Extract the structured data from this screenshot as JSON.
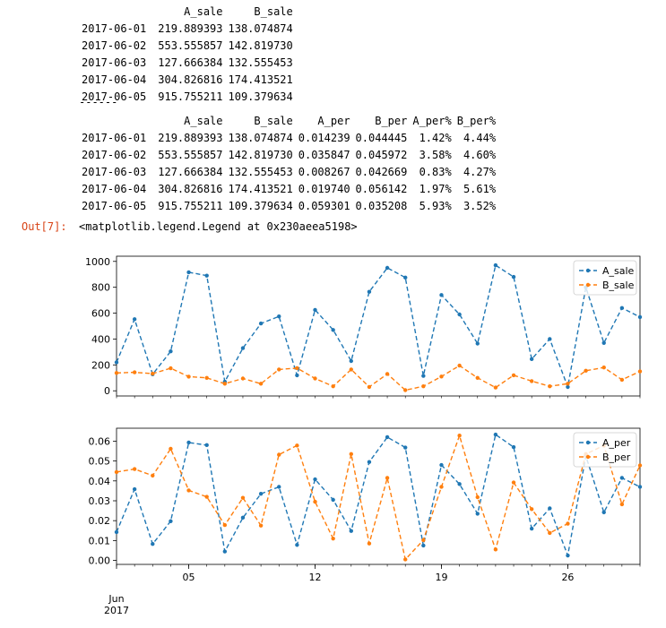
{
  "df1": {
    "columns": [
      "A_sale",
      "B_sale"
    ],
    "rows": [
      {
        "index": "2017-06-01",
        "cells": [
          "219.889393",
          "138.074874"
        ]
      },
      {
        "index": "2017-06-02",
        "cells": [
          "553.555857",
          "142.819730"
        ]
      },
      {
        "index": "2017-06-03",
        "cells": [
          "127.666384",
          "132.555453"
        ]
      },
      {
        "index": "2017-06-04",
        "cells": [
          "304.826816",
          "174.413521"
        ]
      },
      {
        "index": "2017-06-05",
        "cells": [
          "915.755211",
          "109.379634"
        ]
      }
    ]
  },
  "separator": "------",
  "df2": {
    "columns": [
      "A_sale",
      "B_sale",
      "A_per",
      "B_per",
      "A_per%",
      "B_per%"
    ],
    "rows": [
      {
        "index": "2017-06-01",
        "cells": [
          "219.889393",
          "138.074874",
          "0.014239",
          "0.044445",
          "1.42%",
          "4.44%"
        ]
      },
      {
        "index": "2017-06-02",
        "cells": [
          "553.555857",
          "142.819730",
          "0.035847",
          "0.045972",
          "3.58%",
          "4.60%"
        ]
      },
      {
        "index": "2017-06-03",
        "cells": [
          "127.666384",
          "132.555453",
          "0.008267",
          "0.042669",
          "0.83%",
          "4.27%"
        ]
      },
      {
        "index": "2017-06-04",
        "cells": [
          "304.826816",
          "174.413521",
          "0.019740",
          "0.056142",
          "1.97%",
          "5.61%"
        ]
      },
      {
        "index": "2017-06-05",
        "cells": [
          "915.755211",
          "109.379634",
          "0.059301",
          "0.035208",
          "5.93%",
          "3.52%"
        ]
      }
    ]
  },
  "output": {
    "prompt": "Out[7]:",
    "text": "<matplotlib.legend.Legend at 0x230aeea5198>"
  },
  "colors": {
    "A": "#1f77b4",
    "B": "#ff7f0e",
    "prompt": "#d84315"
  },
  "chart_data": [
    {
      "type": "line",
      "x": [
        "2017-06-01",
        "2017-06-02",
        "2017-06-03",
        "2017-06-04",
        "2017-06-05",
        "2017-06-06",
        "2017-06-07",
        "2017-06-08",
        "2017-06-09",
        "2017-06-10",
        "2017-06-11",
        "2017-06-12",
        "2017-06-13",
        "2017-06-14",
        "2017-06-15",
        "2017-06-16",
        "2017-06-17",
        "2017-06-18",
        "2017-06-19",
        "2017-06-20",
        "2017-06-21",
        "2017-06-22",
        "2017-06-23",
        "2017-06-24",
        "2017-06-25",
        "2017-06-26",
        "2017-06-27",
        "2017-06-28",
        "2017-06-29",
        "2017-06-30"
      ],
      "series": [
        {
          "name": "A_sale",
          "color": "#1f77b4",
          "values": [
            219.89,
            553.56,
            127.67,
            304.83,
            915.76,
            890,
            70,
            330,
            520,
            575,
            120,
            625,
            470,
            230,
            765,
            950,
            875,
            115,
            740,
            590,
            365,
            970,
            880,
            245,
            400,
            30,
            800,
            370,
            640,
            570
          ]
        },
        {
          "name": "B_sale",
          "color": "#ff7f0e",
          "values": [
            138.07,
            142.82,
            132.56,
            174.41,
            109.38,
            100,
            55,
            95,
            55,
            165,
            175,
            95,
            35,
            165,
            30,
            130,
            5,
            35,
            110,
            195,
            100,
            25,
            120,
            75,
            35,
            55,
            155,
            180,
            85,
            150
          ]
        }
      ],
      "ylim": [
        -40,
        1040
      ],
      "yticks": [
        "0",
        "200",
        "400",
        "600",
        "800",
        "1000"
      ],
      "ytick_values": [
        0,
        200,
        400,
        600,
        800,
        1000
      ],
      "legend": "top-right",
      "style": "dashed with dot markers"
    },
    {
      "type": "line",
      "x": [
        "2017-06-01",
        "2017-06-02",
        "2017-06-03",
        "2017-06-04",
        "2017-06-05",
        "2017-06-06",
        "2017-06-07",
        "2017-06-08",
        "2017-06-09",
        "2017-06-10",
        "2017-06-11",
        "2017-06-12",
        "2017-06-13",
        "2017-06-14",
        "2017-06-15",
        "2017-06-16",
        "2017-06-17",
        "2017-06-18",
        "2017-06-19",
        "2017-06-20",
        "2017-06-21",
        "2017-06-22",
        "2017-06-23",
        "2017-06-24",
        "2017-06-25",
        "2017-06-26",
        "2017-06-27",
        "2017-06-28",
        "2017-06-29",
        "2017-06-30"
      ],
      "series": [
        {
          "name": "A_per",
          "color": "#1f77b4",
          "values": [
            0.014239,
            0.035847,
            0.008267,
            0.01974,
            0.059301,
            0.058,
            0.0045,
            0.0215,
            0.0335,
            0.037,
            0.0078,
            0.0408,
            0.0305,
            0.0148,
            0.0495,
            0.062,
            0.0568,
            0.0075,
            0.048,
            0.0384,
            0.0235,
            0.0633,
            0.057,
            0.016,
            0.0262,
            0.0025,
            0.0525,
            0.0242,
            0.0415,
            0.037
          ]
        },
        {
          "name": "B_per",
          "color": "#ff7f0e",
          "values": [
            0.044445,
            0.045972,
            0.042669,
            0.056142,
            0.035208,
            0.032,
            0.0178,
            0.0315,
            0.0175,
            0.0532,
            0.0578,
            0.0295,
            0.011,
            0.0535,
            0.0085,
            0.0415,
            0.0005,
            0.0102,
            0.037,
            0.0628,
            0.0318,
            0.0055,
            0.0392,
            0.0258,
            0.0138,
            0.0185,
            0.0535,
            0.0578,
            0.0282,
            0.0478
          ]
        }
      ],
      "ylim": [
        -0.002,
        0.0665
      ],
      "yticks": [
        "0.00",
        "0.01",
        "0.02",
        "0.03",
        "0.04",
        "0.05",
        "0.06"
      ],
      "ytick_values": [
        0,
        0.01,
        0.02,
        0.03,
        0.04,
        0.05,
        0.06
      ],
      "xticks": [
        {
          "date": "2017-06-05",
          "label": "05"
        },
        {
          "date": "2017-06-12",
          "label": "12"
        },
        {
          "date": "2017-06-19",
          "label": "19"
        },
        {
          "date": "2017-06-26",
          "label": "26"
        }
      ],
      "xtick_start_label": [
        "Jun",
        "2017"
      ],
      "legend": "top-right",
      "style": "dashed with dot markers"
    }
  ]
}
